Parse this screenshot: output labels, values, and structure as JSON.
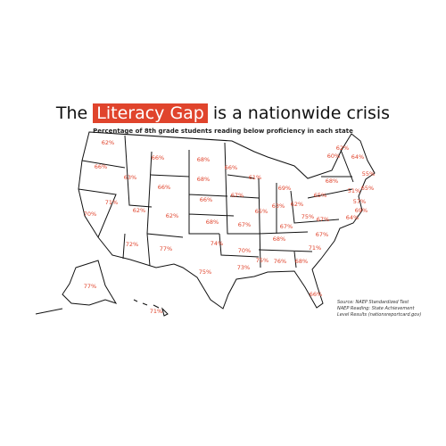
{
  "header": {
    "title_before": "The",
    "title_highlight": "Literacy Gap",
    "title_after": "is a nationwide crisis",
    "subtitle": "Percentage of 8th grade students reading below proficiency in each state"
  },
  "labels": [
    "62%",
    "66%",
    "70%",
    "71%",
    "63%",
    "66%",
    "66%",
    "62%",
    "72%",
    "62%",
    "77%",
    "68%",
    "68%",
    "66%",
    "68%",
    "74%",
    "75%",
    "66%",
    "67%",
    "67%",
    "70%",
    "73%",
    "61%",
    "65%",
    "75%",
    "76%",
    "68%",
    "67%",
    "63%",
    "69%",
    "62%",
    "68%",
    "66%",
    "71%",
    "67%",
    "67%",
    "75%",
    "65%",
    "68%",
    "62%",
    "60%",
    "64%",
    "55%",
    "65%",
    "51%",
    "57%",
    "69%",
    "64%",
    "77%",
    "71%"
  ],
  "source": [
    "Source: NAEP Standardized Test",
    "NAEP Reading: State Achievement",
    "Level Results (nationsreportcard.gov)"
  ]
}
